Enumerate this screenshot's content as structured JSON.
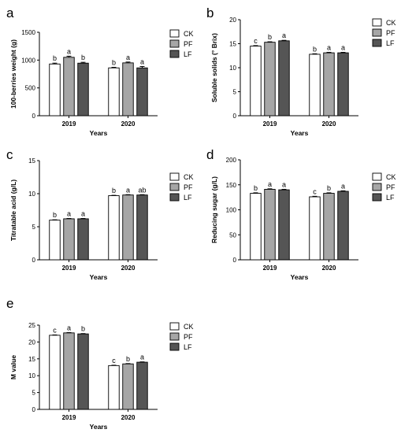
{
  "figure": {
    "legend": [
      "CK",
      "PF",
      "LF"
    ],
    "colors": {
      "CK": "#ffffff",
      "PF": "#a6a6a6",
      "LF": "#555555"
    }
  },
  "chart_data": [
    {
      "panel": "a",
      "type": "bar",
      "categories": [
        "2019",
        "2020"
      ],
      "xlabel": "Years",
      "ylabel": "100-berries weight (g)",
      "ylim": [
        0,
        1500
      ],
      "yticks": [
        0,
        500,
        1000,
        1500
      ],
      "series": [
        {
          "name": "CK",
          "values": [
            930,
            860
          ],
          "errors": [
            15,
            10
          ],
          "labels": [
            "b",
            "b"
          ]
        },
        {
          "name": "PF",
          "values": [
            1050,
            950
          ],
          "errors": [
            20,
            15
          ],
          "labels": [
            "a",
            "a"
          ]
        },
        {
          "name": "LF",
          "values": [
            945,
            860
          ],
          "errors": [
            15,
            25
          ],
          "labels": [
            "b",
            "a"
          ]
        }
      ]
    },
    {
      "panel": "b",
      "type": "bar",
      "categories": [
        "2019",
        "2020"
      ],
      "xlabel": "Years",
      "ylabel": "Soluble solids (° Brix)",
      "ylim": [
        0,
        20
      ],
      "yticks": [
        0,
        5,
        10,
        15,
        20
      ],
      "series": [
        {
          "name": "CK",
          "values": [
            14.5,
            12.8
          ],
          "errors": [
            0.1,
            0.1
          ],
          "labels": [
            "c",
            "b"
          ]
        },
        {
          "name": "PF",
          "values": [
            15.3,
            13.1
          ],
          "errors": [
            0.1,
            0.1
          ],
          "labels": [
            "b",
            "a"
          ]
        },
        {
          "name": "LF",
          "values": [
            15.6,
            13.1
          ],
          "errors": [
            0.1,
            0.1
          ],
          "labels": [
            "a",
            "a"
          ]
        }
      ]
    },
    {
      "panel": "c",
      "type": "bar",
      "categories": [
        "2019",
        "2020"
      ],
      "xlabel": "Years",
      "ylabel": "Titratable acid (g/L)",
      "ylim": [
        0,
        15
      ],
      "yticks": [
        0,
        5,
        10,
        15
      ],
      "series": [
        {
          "name": "CK",
          "values": [
            6.0,
            9.7
          ],
          "errors": [
            0.05,
            0.05
          ],
          "labels": [
            "b",
            "b"
          ]
        },
        {
          "name": "PF",
          "values": [
            6.2,
            9.8
          ],
          "errors": [
            0.05,
            0.05
          ],
          "labels": [
            "a",
            "a"
          ]
        },
        {
          "name": "LF",
          "values": [
            6.2,
            9.8
          ],
          "errors": [
            0.05,
            0.05
          ],
          "labels": [
            "a",
            "ab"
          ]
        }
      ]
    },
    {
      "panel": "d",
      "type": "bar",
      "categories": [
        "2019",
        "2020"
      ],
      "xlabel": "Years",
      "ylabel": "Reducing sugar (g/L)",
      "ylim": [
        0,
        200
      ],
      "yticks": [
        0,
        50,
        100,
        150,
        200
      ],
      "series": [
        {
          "name": "CK",
          "values": [
            133,
            126
          ],
          "errors": [
            1,
            1
          ],
          "labels": [
            "b",
            "c"
          ]
        },
        {
          "name": "PF",
          "values": [
            141,
            133
          ],
          "errors": [
            1,
            1
          ],
          "labels": [
            "a",
            "b"
          ]
        },
        {
          "name": "LF",
          "values": [
            140,
            137
          ],
          "errors": [
            1,
            1
          ],
          "labels": [
            "a",
            "a"
          ]
        }
      ]
    },
    {
      "panel": "e",
      "type": "bar",
      "categories": [
        "2019",
        "2020"
      ],
      "xlabel": "Years",
      "ylabel": "M value",
      "ylim": [
        0,
        25
      ],
      "yticks": [
        0,
        5,
        10,
        15,
        20,
        25
      ],
      "series": [
        {
          "name": "CK",
          "values": [
            22.0,
            13.0
          ],
          "errors": [
            0.1,
            0.1
          ],
          "labels": [
            "c",
            "c"
          ]
        },
        {
          "name": "PF",
          "values": [
            22.7,
            13.5
          ],
          "errors": [
            0.1,
            0.1
          ],
          "labels": [
            "a",
            "b"
          ]
        },
        {
          "name": "LF",
          "values": [
            22.4,
            14.0
          ],
          "errors": [
            0.1,
            0.1
          ],
          "labels": [
            "b",
            "a"
          ]
        }
      ]
    }
  ]
}
